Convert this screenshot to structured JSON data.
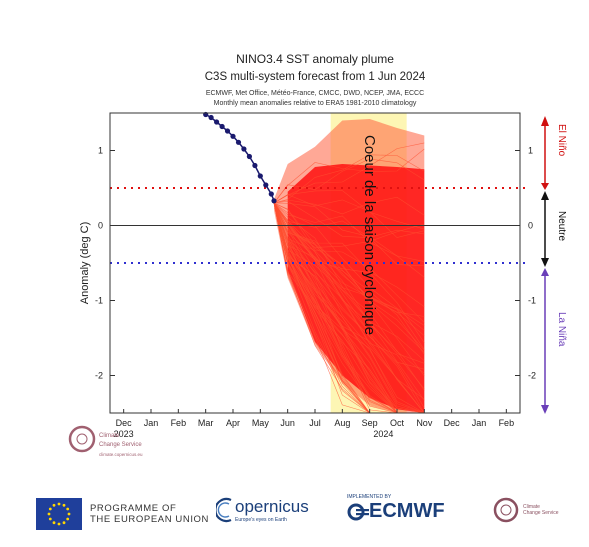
{
  "titles": {
    "line1": "NINO3.4 SST anomaly plume",
    "line2": "C3S multi-system forecast from 1 Jun 2024",
    "line3": "ECMWF, Met Office, Météo-France, CMCC, DWD, NCEP, JMA, ECCC",
    "line4": "Monthly mean anomalies relative to ERA5 1981-2010 climatology"
  },
  "overlay_text": "Coeur de la saison cyclonique",
  "phase_labels": {
    "el_nino": "El Niño",
    "neutral": "Neutre",
    "la_nina": "La Niña"
  },
  "colors": {
    "observed": "#1a1a6e",
    "plume_light": "#ff6040",
    "plume_band": "#ff1010",
    "season_band": "#fdf6b4",
    "el_nino": "#d01010",
    "la_nina": "#6a3fb8",
    "threshold_upper": "#e01010",
    "threshold_lower": "#3030d0"
  },
  "watermark": {
    "line1": "Climate",
    "line2": "Change Service",
    "line3": "climate.copernicus.eu"
  },
  "footer": {
    "eu_line1": "PROGRAMME OF",
    "eu_line2": "THE EUROPEAN UNION",
    "copernicus_word": "opernicus",
    "copernicus_sub": "Europe's eyes on Earth",
    "ecmwf_pre": "IMPLEMENTED BY",
    "ecmwf_word": "ECMWF",
    "c3s_line1": "Climate",
    "c3s_line2": "Change Service"
  },
  "chart_data": {
    "type": "line",
    "title": "NINO3.4 SST anomaly plume",
    "ylabel": "Anomaly (deg C)",
    "xlabel": "",
    "ylim": [
      -2.5,
      1.5
    ],
    "yticks": [
      -2,
      -1,
      0,
      1
    ],
    "x_ticks": [
      "Dec",
      "Jan",
      "Feb",
      "Mar",
      "Apr",
      "May",
      "Jun",
      "Jul",
      "Aug",
      "Sep",
      "Oct",
      "Nov",
      "Dec",
      "Jan",
      "Feb"
    ],
    "year_labels": [
      {
        "label": "2023",
        "at_index": 0
      },
      {
        "label": "2024",
        "at_index": 9.5
      }
    ],
    "thresholds": [
      0.5,
      -0.5
    ],
    "season_band_months": [
      "Aug",
      "Oct"
    ],
    "series": [
      {
        "name": "observed",
        "x": [
          3.0,
          3.2,
          3.4,
          3.6,
          3.8,
          4.0,
          4.2,
          4.4,
          4.6,
          4.8,
          5.0,
          5.2,
          5.4,
          5.5
        ],
        "y": [
          1.48,
          1.44,
          1.38,
          1.32,
          1.26,
          1.19,
          1.11,
          1.02,
          0.92,
          0.8,
          0.66,
          0.54,
          0.42,
          0.33
        ]
      },
      {
        "name": "forecast_band",
        "x": [
          6.0,
          7.0,
          8.0,
          9.0,
          10.0,
          11.0
        ],
        "upper": [
          0.45,
          0.78,
          0.82,
          0.8,
          0.78,
          0.75
        ],
        "lower": [
          -0.6,
          -1.55,
          -2.0,
          -2.3,
          -2.45,
          -2.5
        ]
      },
      {
        "name": "forecast_envelope",
        "x": [
          5.5,
          6.0,
          7.0,
          8.0,
          9.0,
          10.0,
          11.0
        ],
        "upper": [
          0.35,
          0.82,
          1.05,
          1.4,
          1.42,
          1.3,
          1.2
        ],
        "lower": [
          0.2,
          -0.7,
          -1.6,
          -2.1,
          -2.4,
          -2.5,
          -2.5
        ]
      }
    ]
  }
}
